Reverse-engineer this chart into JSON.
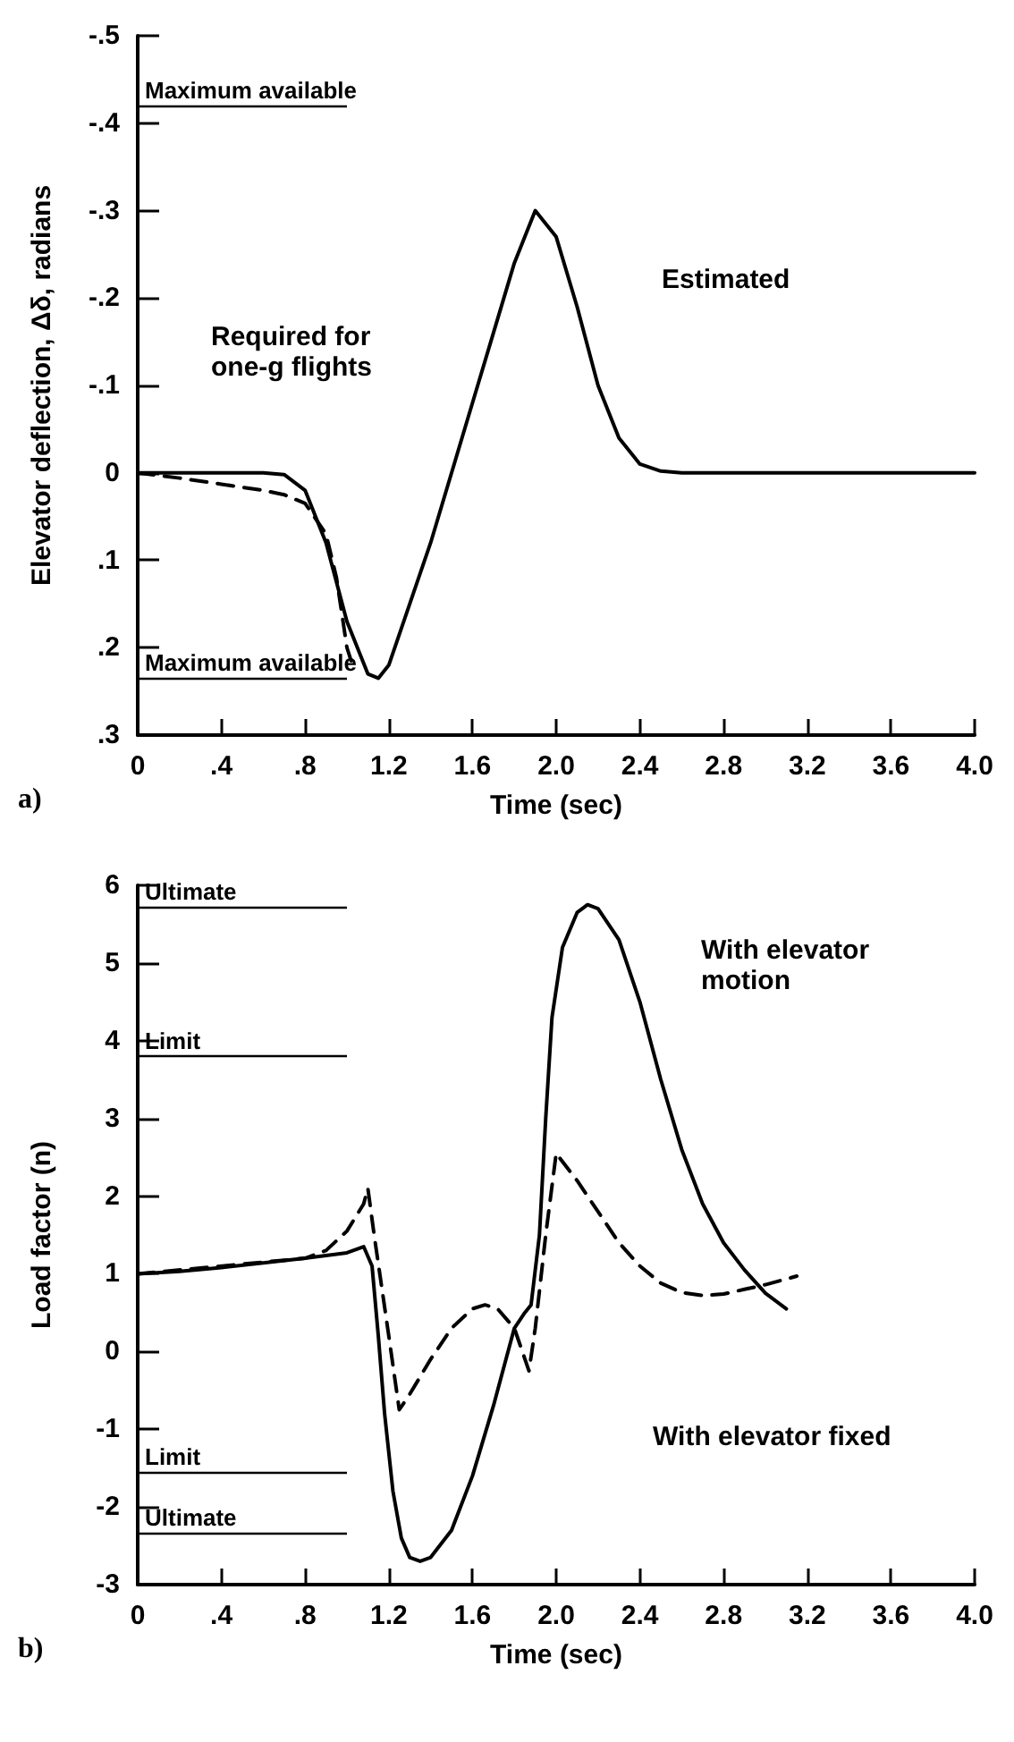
{
  "chart_data": [
    {
      "type": "line",
      "xlabel": "Time (sec)",
      "ylabel": "Elevator deflection, Δδ, radians",
      "xlim": [
        0,
        4
      ],
      "ylim": [
        0.3,
        -0.5
      ],
      "xticks": [
        0,
        {
          "value": 0.4,
          "label": ".4"
        },
        {
          "value": 0.8,
          "label": ".8"
        },
        {
          "value": 1.2,
          "label": "1.2"
        },
        {
          "value": 1.6,
          "label": "1.6"
        },
        {
          "value": 2,
          "label": "2.0"
        },
        {
          "value": 2.4,
          "label": "2.4"
        },
        {
          "value": 2.8,
          "label": "2.8"
        },
        {
          "value": 3.2,
          "label": "3.2"
        },
        {
          "value": 3.6,
          "label": "3.6"
        },
        {
          "value": 4,
          "label": "4.0"
        }
      ],
      "yticks": [
        {
          "value": 0.3,
          "label": ".3"
        },
        {
          "value": 0.2,
          "label": ".2"
        },
        {
          "value": 0.1,
          "label": ".1"
        },
        0,
        {
          "value": -0.1,
          "label": "-.1"
        },
        {
          "value": -0.2,
          "label": "-.2"
        },
        {
          "value": -0.3,
          "label": "-.3"
        },
        {
          "value": -0.4,
          "label": "-.4"
        },
        {
          "value": -0.5,
          "label": "-.5"
        }
      ],
      "grid": false,
      "marker": "none",
      "series": [
        {
          "color": "#000000",
          "line_style": "solid",
          "x": [
            0,
            0.6,
            0.7,
            0.8,
            0.9,
            1.0,
            1.1,
            1.15,
            1.2,
            1.4,
            1.6,
            1.7,
            1.8,
            1.9,
            2.0,
            2.1,
            2.2,
            2.3,
            2.4,
            2.5,
            2.6,
            4.0
          ],
          "values": [
            0,
            0,
            0.002,
            0.02,
            0.08,
            0.17,
            0.23,
            0.235,
            0.22,
            0.08,
            -0.08,
            -0.16,
            -0.24,
            -0.3,
            -0.27,
            -0.19,
            -0.1,
            -0.04,
            -0.01,
            -0.002,
            0,
            0
          ]
        },
        {
          "color": "#000000",
          "line_style": "dashed",
          "x": [
            0,
            0.2,
            0.4,
            0.6,
            0.7,
            0.8,
            0.9,
            0.95,
            1.0,
            1.02
          ],
          "values": [
            0,
            0.006,
            0.013,
            0.02,
            0.025,
            0.035,
            0.07,
            0.12,
            0.2,
            0.215
          ]
        }
      ],
      "ref_lines": [
        {
          "axis": "y",
          "value": -0.42,
          "label": "Maximum available",
          "color": "#000000"
        },
        {
          "axis": "y",
          "value": 0.235,
          "label": "Maximum available",
          "color": "#000000"
        }
      ],
      "annotations": [
        "Estimated",
        "Required for one-g flights",
        "a)"
      ]
    },
    {
      "type": "line",
      "xlabel": "Time (sec)",
      "ylabel": "Load factor (n)",
      "xlim": [
        0,
        4
      ],
      "ylim": [
        -3,
        6
      ],
      "xticks": [
        0,
        {
          "value": 0.4,
          "label": ".4"
        },
        {
          "value": 0.8,
          "label": ".8"
        },
        {
          "value": 1.2,
          "label": "1.2"
        },
        {
          "value": 1.6,
          "label": "1.6"
        },
        {
          "value": 2,
          "label": "2.0"
        },
        {
          "value": 2.4,
          "label": "2.4"
        },
        {
          "value": 2.8,
          "label": "2.8"
        },
        {
          "value": 3.2,
          "label": "3.2"
        },
        {
          "value": 3.6,
          "label": "3.6"
        },
        {
          "value": 4,
          "label": "4.0"
        }
      ],
      "yticks": [
        -3,
        -2,
        -1,
        0,
        1,
        2,
        3,
        4,
        5,
        6
      ],
      "grid": false,
      "marker": "none",
      "series": [
        {
          "color": "#000000",
          "line_style": "solid",
          "x": [
            0,
            0.2,
            0.4,
            0.6,
            0.8,
            1.0,
            1.08,
            1.12,
            1.15,
            1.18,
            1.22,
            1.26,
            1.3,
            1.35,
            1.4,
            1.5,
            1.6,
            1.7,
            1.8,
            1.85,
            1.88,
            1.92,
            1.95,
            1.98,
            2.03,
            2.1,
            2.15,
            2.2,
            2.3,
            2.4,
            2.5,
            2.6,
            2.7,
            2.8,
            2.9,
            3.0,
            3.1
          ],
          "values": [
            1,
            1.03,
            1.08,
            1.14,
            1.2,
            1.27,
            1.35,
            1.1,
            0.2,
            -0.8,
            -1.8,
            -2.4,
            -2.65,
            -2.7,
            -2.65,
            -2.3,
            -1.6,
            -0.7,
            0.3,
            0.5,
            0.6,
            1.5,
            3.0,
            4.3,
            5.2,
            5.65,
            5.75,
            5.7,
            5.3,
            4.5,
            3.5,
            2.6,
            1.9,
            1.4,
            1.05,
            0.75,
            0.55
          ]
        },
        {
          "color": "#000000",
          "line_style": "dashed",
          "x": [
            0,
            0.8,
            0.9,
            1.0,
            1.08,
            1.1,
            1.13,
            1.2,
            1.25,
            1.3,
            1.4,
            1.5,
            1.6,
            1.66,
            1.72,
            1.8,
            1.87,
            1.9,
            1.95,
            2.0,
            2.1,
            2.2,
            2.3,
            2.4,
            2.5,
            2.6,
            2.7,
            2.8,
            2.9,
            3.0,
            3.15
          ],
          "values": [
            1,
            1.2,
            1.3,
            1.55,
            1.9,
            2.1,
            1.5,
            0.2,
            -0.75,
            -0.55,
            -0.1,
            0.3,
            0.55,
            0.6,
            0.55,
            0.3,
            -0.25,
            0.3,
            1.5,
            2.55,
            2.2,
            1.8,
            1.4,
            1.1,
            0.88,
            0.76,
            0.72,
            0.74,
            0.8,
            0.86,
            0.97
          ]
        }
      ],
      "ref_lines": [
        {
          "axis": "y",
          "value": 5.72,
          "label": "Ultimate",
          "color": "#000000"
        },
        {
          "axis": "y",
          "value": 3.8,
          "label": "Limit",
          "color": "#000000"
        },
        {
          "axis": "y",
          "value": -1.55,
          "label": "Limit",
          "color": "#000000"
        },
        {
          "axis": "y",
          "value": -2.33,
          "label": "Ultimate",
          "color": "#000000"
        }
      ],
      "annotations": [
        "With elevator motion",
        "With elevator fixed",
        "b)"
      ]
    }
  ]
}
